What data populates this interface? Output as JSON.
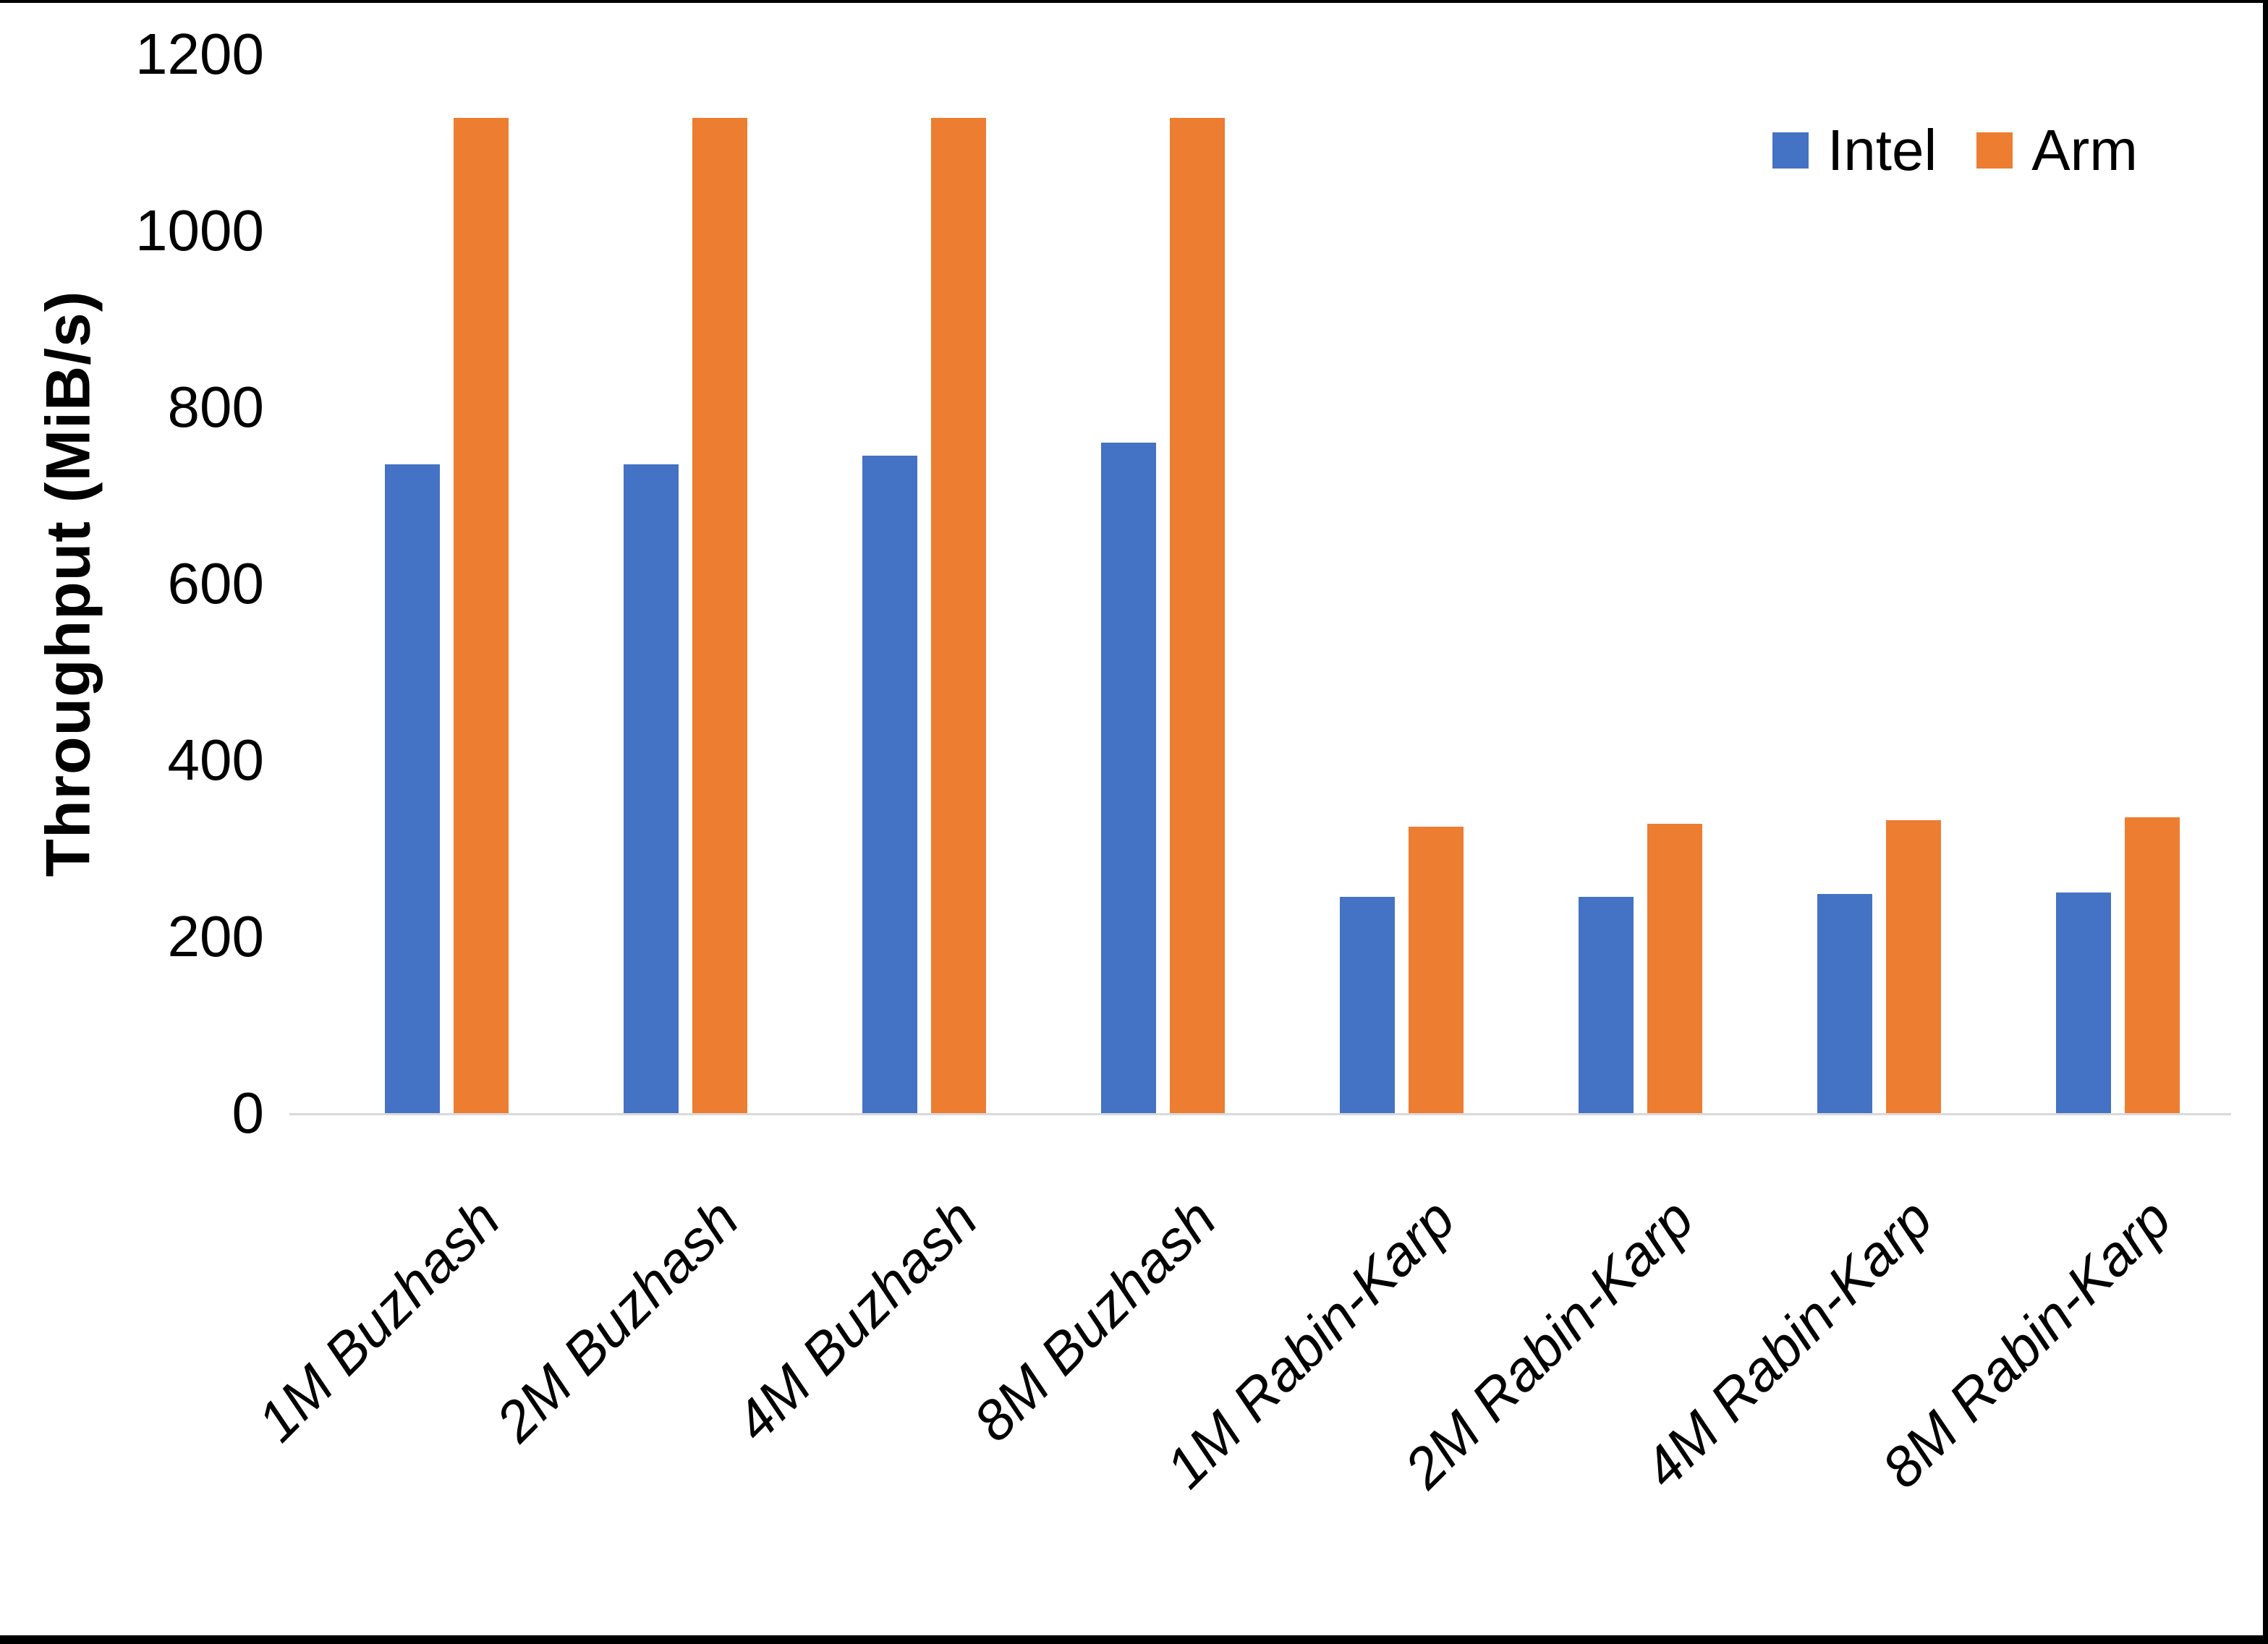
{
  "figure": {
    "background": "#FFFFFF",
    "frame_color": "#000000"
  },
  "chart_data": {
    "type": "bar",
    "title": "",
    "categories": [
      "1M Buzhash",
      "2M Buzhash",
      "4M Buzhash",
      "8M Buzhash",
      "1M Rabin-Karp",
      "2M Rabin-Karp",
      "4M Rabin-Karp",
      "8M Rabin-Karp"
    ],
    "series": [
      {
        "name": "Intel",
        "color": "#4472C4",
        "values": [
          735,
          735,
          745,
          760,
          245,
          245,
          248,
          250
        ]
      },
      {
        "name": "Arm",
        "color": "#ED7D31",
        "values": [
          1128,
          1128,
          1128,
          1128,
          325,
          328,
          332,
          335
        ]
      }
    ],
    "xlabel": "",
    "ylabel": "Throughput (MiB/s)",
    "ylim": [
      0,
      1200
    ],
    "yticks": [
      0,
      200,
      400,
      600,
      800,
      1000,
      1200
    ],
    "grid": false,
    "legend_position": "top-right",
    "axis_line_color": "#D9D9D9",
    "tick_label_color": "#000000"
  }
}
